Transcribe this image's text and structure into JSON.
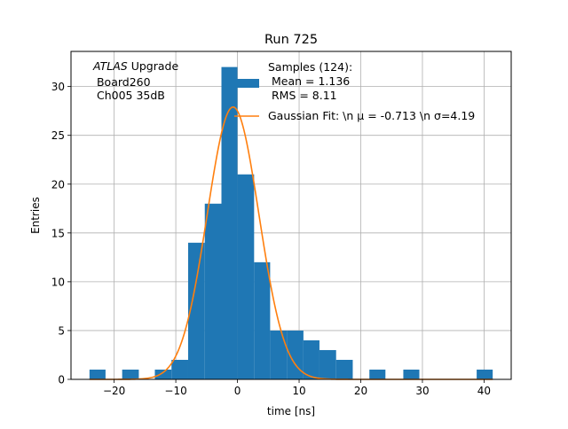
{
  "chart_data": {
    "type": "bar",
    "title": "Run 725",
    "xlabel": "time [ns]",
    "ylabel": "Entries",
    "xlim": [
      -27.0,
      44.4
    ],
    "ylim": [
      0,
      33.6
    ],
    "grid": true,
    "x_ticks": [
      -20,
      -10,
      0,
      10,
      20,
      30,
      40
    ],
    "y_ticks": [
      0,
      5,
      10,
      15,
      20,
      25,
      30
    ],
    "annotation": {
      "atlas": "ATLAS",
      "atlas_suffix": " Upgrade",
      "line2": " Board260",
      "line3": " Ch005 35dB"
    },
    "legend": {
      "placement": "top-right",
      "hist_lines": [
        "Samples (124):",
        " Mean = 1.136",
        " RMS = 8.11"
      ],
      "fit_label": "Gaussian Fit: \\n μ = -0.713 \\n σ=4.19"
    },
    "histogram": {
      "name": "Samples (124)",
      "color": "#1f77b4",
      "bins": [
        {
          "x0": -24.0,
          "x1": -21.4,
          "count": 1
        },
        {
          "x0": -18.7,
          "x1": -16.0,
          "count": 1
        },
        {
          "x0": -13.4,
          "x1": -10.7,
          "count": 1
        },
        {
          "x0": -10.7,
          "x1": -8.0,
          "count": 2
        },
        {
          "x0": -8.0,
          "x1": -5.3,
          "count": 14
        },
        {
          "x0": -5.3,
          "x1": -2.6,
          "count": 18
        },
        {
          "x0": -2.6,
          "x1": 0.0,
          "count": 32
        },
        {
          "x0": 0.0,
          "x1": 2.7,
          "count": 21
        },
        {
          "x0": 2.7,
          "x1": 5.3,
          "count": 12
        },
        {
          "x0": 5.3,
          "x1": 8.0,
          "count": 5
        },
        {
          "x0": 8.0,
          "x1": 10.7,
          "count": 5
        },
        {
          "x0": 10.7,
          "x1": 13.3,
          "count": 4
        },
        {
          "x0": 13.3,
          "x1": 16.0,
          "count": 3
        },
        {
          "x0": 16.0,
          "x1": 18.7,
          "count": 2
        },
        {
          "x0": 21.4,
          "x1": 24.0,
          "count": 1
        },
        {
          "x0": 26.9,
          "x1": 29.5,
          "count": 1
        },
        {
          "x0": 38.8,
          "x1": 41.4,
          "count": 1
        }
      ]
    },
    "fit": {
      "name": "Gaussian Fit",
      "color": "#ff7f0e",
      "mu": -0.713,
      "sigma": 4.19,
      "amplitude": 27.9,
      "x_range": [
        -24.0,
        41.4
      ]
    }
  }
}
